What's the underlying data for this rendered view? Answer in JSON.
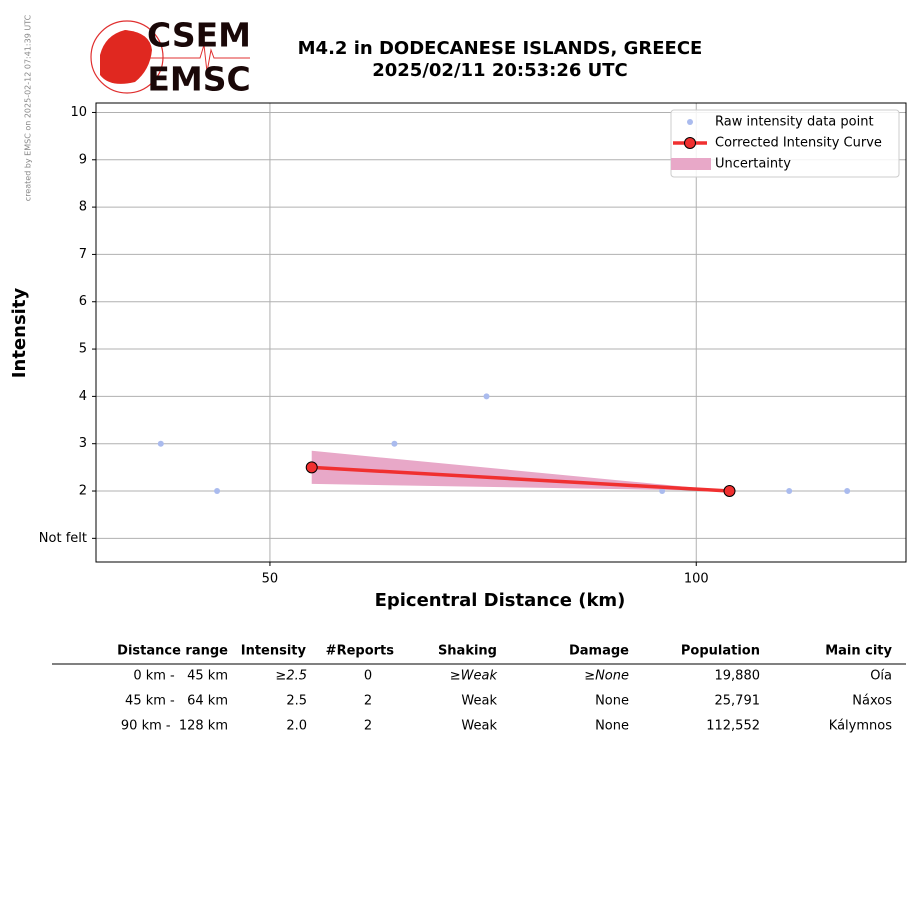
{
  "header": {
    "logo_top": "CSEM",
    "logo_bottom": "EMSC",
    "note": "created by EMSC on 2025-02-12 07:41:39 UTC"
  },
  "chart_data": {
    "type": "line",
    "title": "M4.2 in DODECANESE ISLANDS, GREECE",
    "subtitle": "2025/02/11 20:53:26 UTC",
    "x_label": "Epicentral Distance (km)",
    "y_label": "Intensity",
    "xlim": [
      29.6,
      124.6
    ],
    "xticks": [
      50,
      100
    ],
    "ylim": [
      0.5,
      10.2
    ],
    "yticks": [
      {
        "value": 1,
        "label": "Not felt"
      },
      2,
      3,
      4,
      5,
      6,
      7,
      8,
      9,
      10
    ],
    "grid": true,
    "legend": "upper right",
    "series": [
      {
        "name": "Raw intensity data point",
        "type": "scatter",
        "color": "#aabbee",
        "x": [
          37.2,
          43.8,
          64.6,
          75.4,
          96.0,
          110.9,
          117.7
        ],
        "values": [
          3,
          2,
          3,
          4,
          2,
          2,
          2
        ]
      },
      {
        "name": "Corrected Intensity Curve",
        "type": "line",
        "color": "#f03030",
        "x": [
          54.9,
          103.9
        ],
        "values": [
          2.5,
          2.0
        ]
      },
      {
        "name": "Uncertainty",
        "type": "band",
        "color": "#e8a8c8",
        "x": [
          54.9,
          103.9
        ],
        "upper": [
          2.85,
          2.0
        ],
        "lower": [
          2.15,
          2.0
        ]
      }
    ]
  },
  "table": {
    "columns": [
      "Distance range",
      "Intensity",
      "#Reports",
      "Shaking",
      "Damage",
      "Population",
      "Main city"
    ],
    "rows": [
      [
        "0 km -   45 km",
        "≥2.5",
        "0",
        "≥Weak",
        "≥None",
        "19,880",
        "Oía"
      ],
      [
        "45 km -   64 km",
        "2.5",
        "2",
        "Weak",
        "None",
        "25,791",
        "Náxos"
      ],
      [
        "90 km -  128 km",
        "2.0",
        "2",
        "Weak",
        "None",
        "112,552",
        "Kálymnos"
      ]
    ]
  }
}
